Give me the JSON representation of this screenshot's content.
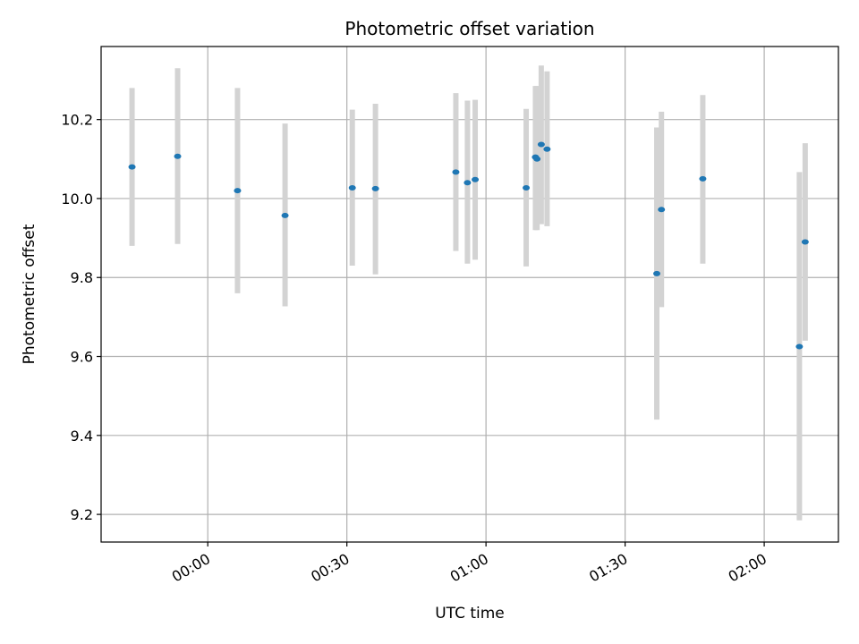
{
  "chart_data": {
    "type": "scatter",
    "title": "Photometric offset variation",
    "xlabel": "UTC time",
    "ylabel": "Photometric offset",
    "x_unit": "UTC time (HH:MM)",
    "xlim": [
      "-00:23",
      "02:16"
    ],
    "ylim": [
      9.13,
      10.385
    ],
    "grid": true,
    "x_ticks": [
      "00:00",
      "00:30",
      "01:00",
      "01:30",
      "02:00"
    ],
    "y_ticks": [
      9.2,
      9.4,
      9.6,
      9.8,
      10.0,
      10.2
    ],
    "colors": {
      "points": "#1f77b4",
      "errorbars": "#d3d3d3",
      "grid": "#b0b0b0"
    },
    "points": [
      {
        "x": "-00:16:20",
        "y": 10.08,
        "ylow": 9.88,
        "yhigh": 10.28
      },
      {
        "x": "-00:06:30",
        "y": 10.107,
        "ylow": 9.885,
        "yhigh": 10.33
      },
      {
        "x": "00:06:25",
        "y": 10.02,
        "ylow": 9.76,
        "yhigh": 10.28
      },
      {
        "x": "00:16:40",
        "y": 9.957,
        "ylow": 9.727,
        "yhigh": 10.19
      },
      {
        "x": "00:31:10",
        "y": 10.027,
        "ylow": 9.83,
        "yhigh": 10.225
      },
      {
        "x": "00:36:10",
        "y": 10.025,
        "ylow": 9.808,
        "yhigh": 10.24
      },
      {
        "x": "00:53:30",
        "y": 10.067,
        "ylow": 9.867,
        "yhigh": 10.267
      },
      {
        "x": "00:56:00",
        "y": 10.04,
        "ylow": 9.835,
        "yhigh": 10.248
      },
      {
        "x": "00:57:40",
        "y": 10.048,
        "ylow": 9.845,
        "yhigh": 10.25
      },
      {
        "x": "01:08:40",
        "y": 10.027,
        "ylow": 9.828,
        "yhigh": 10.227
      },
      {
        "x": "01:10:40",
        "y": 10.105,
        "ylow": 9.92,
        "yhigh": 10.285
      },
      {
        "x": "01:11:00",
        "y": 10.1,
        "ylow": 9.92,
        "yhigh": 10.285
      },
      {
        "x": "01:11:55",
        "y": 10.137,
        "ylow": 9.935,
        "yhigh": 10.337
      },
      {
        "x": "01:13:10",
        "y": 10.125,
        "ylow": 9.93,
        "yhigh": 10.322
      },
      {
        "x": "01:36:50",
        "y": 9.81,
        "ylow": 9.44,
        "yhigh": 10.18
      },
      {
        "x": "01:37:50",
        "y": 9.972,
        "ylow": 9.725,
        "yhigh": 10.22
      },
      {
        "x": "01:46:45",
        "y": 10.05,
        "ylow": 9.835,
        "yhigh": 10.262
      },
      {
        "x": "02:07:35",
        "y": 9.625,
        "ylow": 9.185,
        "yhigh": 10.067
      },
      {
        "x": "02:08:50",
        "y": 9.89,
        "ylow": 9.64,
        "yhigh": 10.14
      }
    ]
  }
}
